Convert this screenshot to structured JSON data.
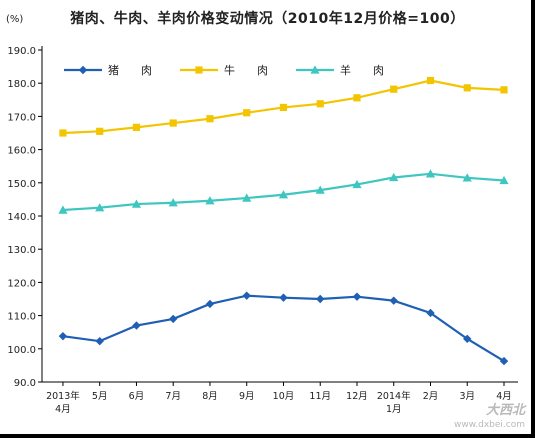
{
  "title": "猪肉、牛肉、羊肉价格变动情况（2010年12月价格=100）",
  "unit_label": "(%)",
  "watermark": {
    "main": "大西北",
    "sub": "www.dxbei.com"
  },
  "colors": {
    "pork": "#1f5fb4",
    "beef": "#f3c400",
    "mutton": "#3fc6c0",
    "axis": "#000000"
  },
  "chart_data": {
    "type": "line",
    "title": "猪肉、牛肉、羊肉价格变动情况（2010年12月价格=100）",
    "ylabel": "(%)",
    "ylim": [
      90,
      190
    ],
    "yticks": [
      "90.0",
      "100.0",
      "110.0",
      "120.0",
      "130.0",
      "140.0",
      "150.0",
      "160.0",
      "170.0",
      "180.0",
      "190.0"
    ],
    "categories": [
      [
        "2013年",
        "4月"
      ],
      [
        "5月"
      ],
      [
        "6月"
      ],
      [
        "7月"
      ],
      [
        "8月"
      ],
      [
        "9月"
      ],
      [
        "10月"
      ],
      [
        "11月"
      ],
      [
        "12月"
      ],
      [
        "2014年",
        "1月"
      ],
      [
        "2月"
      ],
      [
        "3月"
      ],
      [
        "4月"
      ]
    ],
    "grid": false,
    "legend_position": "top-left",
    "series": [
      {
        "name": "猪　　肉",
        "marker": "diamond",
        "color": "#1f5fb4",
        "values": [
          103.8,
          102.3,
          107.0,
          109.0,
          113.5,
          116.0,
          115.4,
          115.0,
          115.7,
          114.5,
          110.8,
          103.0,
          96.3
        ]
      },
      {
        "name": "牛　　肉",
        "marker": "square",
        "color": "#f3c400",
        "values": [
          165.0,
          165.5,
          166.7,
          168.0,
          169.3,
          171.1,
          172.7,
          173.8,
          175.6,
          178.2,
          180.8,
          178.6,
          178.0
        ]
      },
      {
        "name": "羊　　肉",
        "marker": "triangle",
        "color": "#3fc6c0",
        "values": [
          141.8,
          142.5,
          143.6,
          144.0,
          144.6,
          145.4,
          146.4,
          147.8,
          149.5,
          151.6,
          152.7,
          151.5,
          150.7
        ]
      }
    ]
  }
}
